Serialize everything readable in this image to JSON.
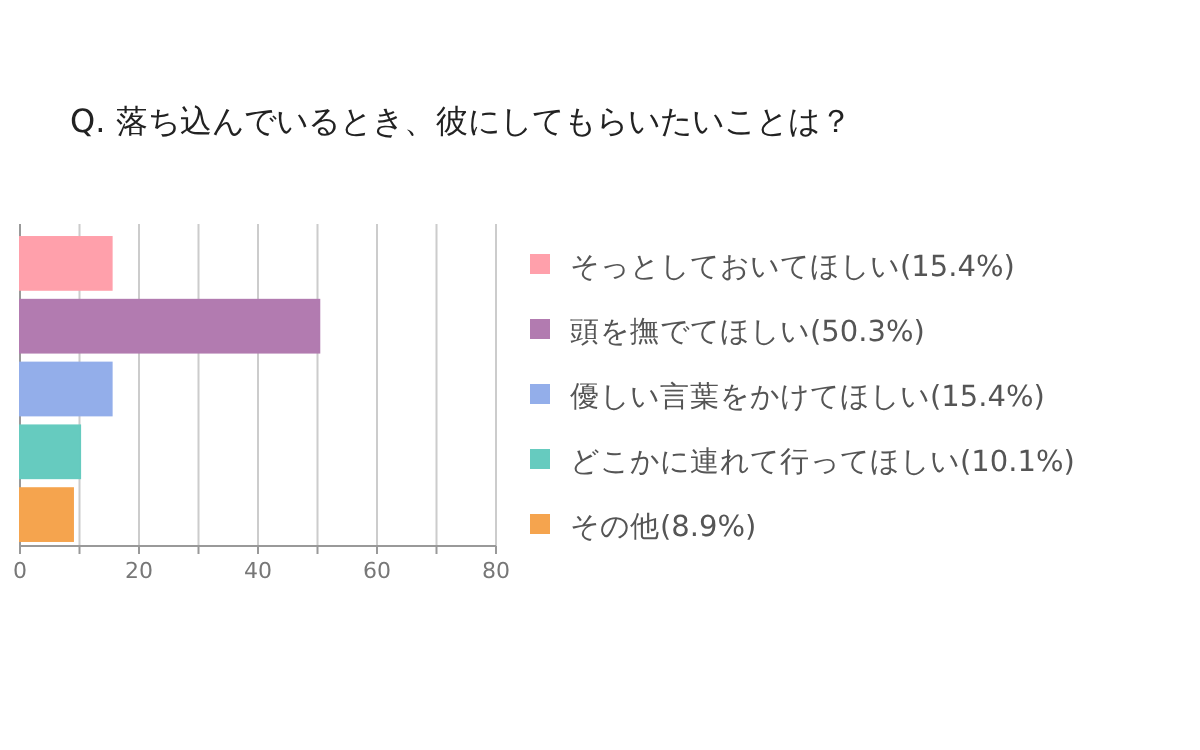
{
  "chart_data": {
    "type": "bar",
    "orientation": "horizontal",
    "stacked": true,
    "title": "Q. 落ち込んでいるとき、彼にしてもらいたいことは？",
    "categories": [
      null,
      null,
      null,
      null,
      null
    ],
    "series": [
      {
        "name": "そっとしておいてほしい(15.4%)",
        "color": "#ffa0ab",
        "values": [
          15.4,
          null,
          null,
          null,
          null
        ]
      },
      {
        "name": "頭を撫でてほしい(50.3%)",
        "color": "#b27bb0",
        "values": [
          null,
          50.3,
          null,
          null,
          null
        ]
      },
      {
        "name": "優しい言葉をかけてほしい(15.4%)",
        "color": "#93aeea",
        "values": [
          null,
          null,
          15.4,
          null,
          null
        ]
      },
      {
        "name": "どこかに連れて行ってほしい(10.1%)",
        "color": "#66cbbf",
        "values": [
          null,
          null,
          null,
          10.1,
          null
        ]
      },
      {
        "name": "その他(8.9%)",
        "color": "#f5a44e",
        "values": [
          null,
          null,
          null,
          null,
          8.9
        ]
      }
    ],
    "xlim": [
      0,
      80
    ],
    "xticks": [
      0,
      {
        "value": 10,
        "label": null
      },
      20,
      {
        "value": 30,
        "label": null
      },
      40,
      {
        "value": 50,
        "label": null
      },
      60,
      {
        "value": 70,
        "label": null
      },
      80
    ],
    "grid": "x",
    "legend": "right",
    "tick_labels": "x"
  }
}
